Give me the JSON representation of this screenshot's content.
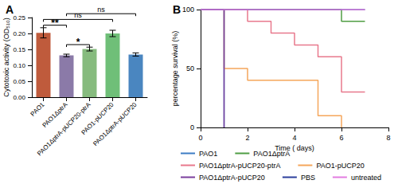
{
  "chart_data": [
    {
      "type": "bar",
      "title": "A",
      "y_label": "Cytotoxic activity (OD₅₁₀)",
      "categories": [
        "PAO1",
        "PAO1ΔptrA",
        "PAO1ΔptrA-pUCP20-ptrA",
        "PAO1-pUCP20",
        "PAO1ΔptrA-pUCP20"
      ],
      "values": [
        0.202,
        0.131,
        0.151,
        0.2,
        0.134
      ],
      "errors": [
        0.016,
        0.004,
        0.006,
        0.01,
        0.005
      ],
      "colors": [
        "#bf5b3c",
        "#8b7aa8",
        "#86bb7e",
        "#6fbf78",
        "#4a86c0"
      ],
      "ylim": [
        0,
        0.25
      ],
      "yticks": [
        {
          "value": 0,
          "label": "0.00"
        },
        {
          "value": 0.05,
          "label": "0.05"
        },
        {
          "value": 0.1,
          "label": "0.10"
        },
        {
          "value": 0.15,
          "label": "0.15"
        },
        {
          "value": 0.2,
          "label": "0.20"
        },
        {
          "value": 0.25,
          "label": "0.25"
        }
      ],
      "grid": false,
      "annotations": [
        {
          "from": "PAO1",
          "to": "PAO1ΔptrA",
          "label": "**"
        },
        {
          "from": "PAO1ΔptrA",
          "to": "PAO1ΔptrA-pUCP20-ptrA",
          "label": "*"
        },
        {
          "from": "PAO1",
          "to": "PAO1-pUCP20",
          "label": "ns"
        },
        {
          "from": "PAO1ΔptrA",
          "to": "PAO1ΔptrA-pUCP20",
          "label": "ns"
        }
      ]
    },
    {
      "type": "line",
      "title": "B",
      "x_label": "Time ( days)",
      "y_label": "percentage survival (%)",
      "xlim": [
        0,
        8
      ],
      "xticks": [
        0,
        2,
        4,
        6,
        8
      ],
      "ylim": [
        0,
        100
      ],
      "yticks": [
        0,
        50,
        100
      ],
      "line_style": "step",
      "marker": "none",
      "grid": false,
      "legend": "bottom",
      "series": [
        {
          "name": "PAO1",
          "color": "#3d7cc4",
          "x": [
            0,
            1
          ],
          "values": [
            100,
            0
          ]
        },
        {
          "name": "PAO1ΔptrA",
          "color": "#4f9d43",
          "x": [
            0,
            6,
            7
          ],
          "values": [
            100,
            90,
            90
          ]
        },
        {
          "name": "PAO1ΔptrA-pUCP20-ptrA",
          "color": "#e8798d",
          "x": [
            0,
            2,
            3,
            4,
            5,
            6,
            7
          ],
          "values": [
            100,
            90,
            80,
            70,
            60,
            30,
            30
          ]
        },
        {
          "name": "PAO1-pUCP20",
          "color": "#f5a65b",
          "x": [
            0,
            1,
            2,
            5,
            6
          ],
          "values": [
            100,
            50,
            40,
            10,
            0
          ]
        },
        {
          "name": "PAO1ΔptrA-pUCP20",
          "color": "#7a3e9d",
          "x": [
            0,
            1
          ],
          "values": [
            100,
            0
          ]
        },
        {
          "name": "PBS",
          "color": "#2b3f9c",
          "x": [
            0,
            7
          ],
          "values": [
            100,
            100
          ]
        },
        {
          "name": "untreated",
          "color": "#e27ce0",
          "x": [
            0,
            7
          ],
          "values": [
            100,
            100
          ]
        }
      ]
    }
  ]
}
